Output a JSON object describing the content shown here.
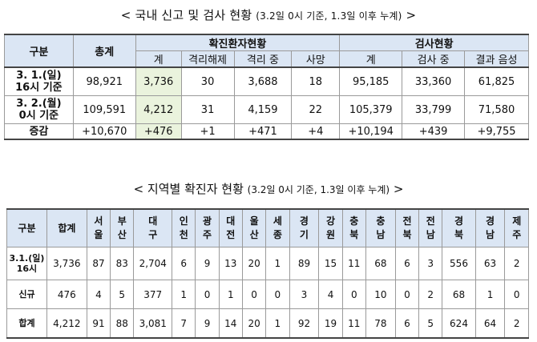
{
  "title1": {
    "main": "< 국내 신고 및 검사 현황 ",
    "sub": "(3.2일 0시 기준, 1.3일 이후 누계)",
    "end": " >"
  },
  "table1": {
    "header": {
      "col_group": "구분",
      "total": "총계",
      "confirmed_group": "확진환자현황",
      "test_group": "검사현황",
      "confirmed_cols": [
        "계",
        "격리해제",
        "격리 중",
        "사망"
      ],
      "test_cols": [
        "계",
        "검사 중",
        "결과 음성"
      ]
    },
    "rows": [
      {
        "label_l1": "3. 1.(일)",
        "label_l2": "16시 기준",
        "values": [
          "98,921",
          "3,736",
          "30",
          "3,688",
          "18",
          "95,185",
          "33,360",
          "61,825"
        ]
      },
      {
        "label_l1": "3. 2.(월)",
        "label_l2": "0시 기준",
        "values": [
          "109,591",
          "4,212",
          "31",
          "4,159",
          "22",
          "105,379",
          "33,799",
          "71,580"
        ]
      },
      {
        "label_l1": "증감",
        "label_l2": "",
        "values": [
          "+10,670",
          "+476",
          "+1",
          "+471",
          "+4",
          "+10,194",
          "+439",
          "+9,755"
        ]
      }
    ]
  },
  "title2": {
    "main": "< 지역별 확진자 현황 ",
    "sub": "(3.2일 0시 기준, 1.3일 이후 누계)",
    "end": " >"
  },
  "table2": {
    "corner": "구분",
    "regions": [
      "합계",
      "서울",
      "부산",
      "대구",
      "인천",
      "광주",
      "대전",
      "울산",
      "세종",
      "경기",
      "강원",
      "충북",
      "충남",
      "전북",
      "전남",
      "경북",
      "경남",
      "제주"
    ],
    "rows": [
      {
        "label_l1": "3.1.(일)",
        "label_l2": "16시",
        "values": [
          "3,736",
          "87",
          "83",
          "2,704",
          "6",
          "9",
          "13",
          "20",
          "1",
          "89",
          "15",
          "11",
          "68",
          "6",
          "3",
          "556",
          "63",
          "2"
        ]
      },
      {
        "label_l1": "신규",
        "label_l2": "",
        "values": [
          "476",
          "4",
          "5",
          "377",
          "1",
          "0",
          "1",
          "0",
          "0",
          "3",
          "4",
          "0",
          "10",
          "0",
          "2",
          "68",
          "1",
          "0"
        ]
      },
      {
        "label_l1": "합계",
        "label_l2": "",
        "values": [
          "4,212",
          "91",
          "88",
          "3,081",
          "7",
          "9",
          "14",
          "20",
          "1",
          "92",
          "19",
          "11",
          "78",
          "6",
          "5",
          "624",
          "64",
          "2"
        ]
      }
    ]
  }
}
